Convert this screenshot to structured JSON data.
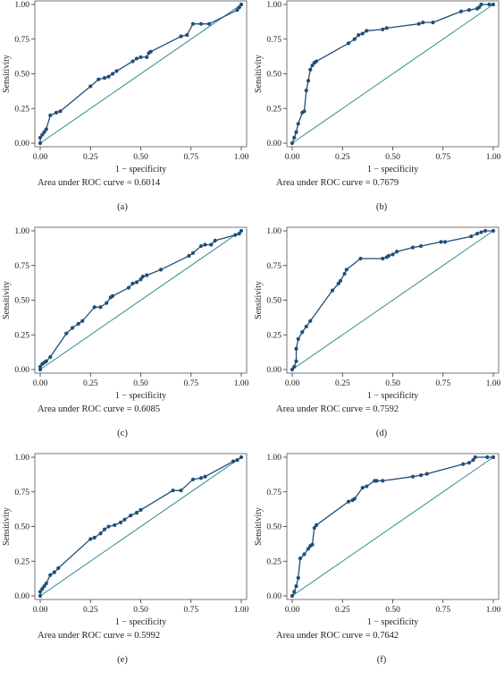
{
  "colors": {
    "roc": "#1f4e79",
    "ref": "#2e8b8b",
    "frame": "#555555",
    "tick": "#333333"
  },
  "x_ticks": [
    "0.00",
    "0.25",
    "0.50",
    "0.75",
    "1.00"
  ],
  "y_ticks": [
    "0.00",
    "0.25",
    "0.50",
    "0.75",
    "1.00"
  ],
  "chart_data": [
    {
      "type": "line",
      "panel_label": "(a)",
      "auc_label": "Area under ROC curve = 0.6014",
      "xlabel": "1 − specificity",
      "ylabel": "Sensitivity",
      "xlim": [
        0,
        1
      ],
      "ylim": [
        0,
        1
      ],
      "series": [
        {
          "x": [
            0,
            0,
            0.01,
            0.02,
            0.03,
            0.05,
            0.08,
            0.1,
            0.25,
            0.29,
            0.32,
            0.34,
            0.36,
            0.38,
            0.46,
            0.48,
            0.5,
            0.53,
            0.54,
            0.55,
            0.7,
            0.73,
            0.76,
            0.8,
            0.84,
            0.98,
            0.99,
            1.0
          ],
          "y": [
            0,
            0.04,
            0.06,
            0.08,
            0.1,
            0.2,
            0.22,
            0.23,
            0.41,
            0.46,
            0.47,
            0.48,
            0.5,
            0.52,
            0.59,
            0.61,
            0.62,
            0.62,
            0.65,
            0.66,
            0.77,
            0.78,
            0.86,
            0.86,
            0.86,
            0.96,
            0.98,
            1.0
          ]
        },
        {
          "x": [
            0,
            1
          ],
          "y": [
            0,
            1
          ]
        }
      ]
    },
    {
      "type": "line",
      "panel_label": "(b)",
      "auc_label": "Area under ROC curve = 0.7679",
      "xlabel": "1 − specificity",
      "ylabel": "Sensitivity",
      "xlim": [
        0,
        1
      ],
      "ylim": [
        0,
        1
      ],
      "series": [
        {
          "x": [
            0,
            0.01,
            0.02,
            0.03,
            0.05,
            0.06,
            0.07,
            0.08,
            0.09,
            0.1,
            0.11,
            0.12,
            0.28,
            0.31,
            0.33,
            0.35,
            0.37,
            0.45,
            0.47,
            0.63,
            0.65,
            0.7,
            0.84,
            0.88,
            0.92,
            0.93,
            0.94,
            0.98,
            1.0
          ],
          "y": [
            0,
            0.04,
            0.08,
            0.14,
            0.22,
            0.23,
            0.38,
            0.45,
            0.53,
            0.56,
            0.58,
            0.59,
            0.72,
            0.75,
            0.78,
            0.79,
            0.81,
            0.82,
            0.83,
            0.86,
            0.87,
            0.87,
            0.95,
            0.96,
            0.97,
            0.98,
            1.0,
            1.0,
            1.0
          ]
        },
        {
          "x": [
            0,
            1
          ],
          "y": [
            0,
            1
          ]
        }
      ]
    },
    {
      "type": "line",
      "panel_label": "(c)",
      "auc_label": "Area under ROC curve = 0.6085",
      "xlabel": "1 − specificity",
      "ylabel": "Sensitivity",
      "xlim": [
        0,
        1
      ],
      "ylim": [
        0,
        1
      ],
      "series": [
        {
          "x": [
            0,
            0,
            0.01,
            0.02,
            0.03,
            0.05,
            0.13,
            0.16,
            0.19,
            0.21,
            0.27,
            0.3,
            0.33,
            0.35,
            0.36,
            0.44,
            0.46,
            0.48,
            0.5,
            0.51,
            0.53,
            0.6,
            0.74,
            0.76,
            0.8,
            0.82,
            0.85,
            0.87,
            0.97,
            0.99,
            1.0
          ],
          "y": [
            0,
            0.02,
            0.04,
            0.05,
            0.06,
            0.09,
            0.26,
            0.3,
            0.33,
            0.35,
            0.45,
            0.45,
            0.48,
            0.52,
            0.53,
            0.59,
            0.62,
            0.63,
            0.65,
            0.67,
            0.68,
            0.72,
            0.82,
            0.84,
            0.89,
            0.9,
            0.9,
            0.93,
            0.97,
            0.98,
            1.0
          ]
        },
        {
          "x": [
            0,
            1
          ],
          "y": [
            0,
            1
          ]
        }
      ]
    },
    {
      "type": "line",
      "panel_label": "(d)",
      "auc_label": "Area under ROC curve = 0.7592",
      "xlabel": "1 − specificity",
      "ylabel": "Sensitivity",
      "xlim": [
        0,
        1
      ],
      "ylim": [
        0,
        1
      ],
      "series": [
        {
          "x": [
            0,
            0.01,
            0.02,
            0.02,
            0.03,
            0.05,
            0.07,
            0.09,
            0.2,
            0.23,
            0.24,
            0.26,
            0.27,
            0.34,
            0.45,
            0.47,
            0.48,
            0.5,
            0.52,
            0.6,
            0.64,
            0.74,
            0.76,
            0.89,
            0.92,
            0.94,
            0.96,
            1.0
          ],
          "y": [
            0,
            0.02,
            0.06,
            0.15,
            0.22,
            0.27,
            0.31,
            0.35,
            0.57,
            0.62,
            0.64,
            0.69,
            0.72,
            0.8,
            0.8,
            0.81,
            0.82,
            0.83,
            0.85,
            0.88,
            0.89,
            0.92,
            0.92,
            0.96,
            0.98,
            0.99,
            1.0,
            1.0
          ]
        },
        {
          "x": [
            0,
            1
          ],
          "y": [
            0,
            1
          ]
        }
      ]
    },
    {
      "type": "line",
      "panel_label": "(e)",
      "auc_label": "Area under ROC curve = 0.5992",
      "xlabel": "1 − specificity",
      "ylabel": "Sensitivity",
      "xlim": [
        0,
        1
      ],
      "ylim": [
        0,
        1
      ],
      "series": [
        {
          "x": [
            0,
            0,
            0.01,
            0.02,
            0.03,
            0.05,
            0.07,
            0.09,
            0.25,
            0.27,
            0.3,
            0.32,
            0.34,
            0.37,
            0.4,
            0.42,
            0.45,
            0.48,
            0.5,
            0.66,
            0.7,
            0.76,
            0.8,
            0.82,
            0.96,
            0.98,
            1.0
          ],
          "y": [
            0,
            0.03,
            0.05,
            0.07,
            0.09,
            0.15,
            0.17,
            0.2,
            0.41,
            0.42,
            0.45,
            0.48,
            0.5,
            0.51,
            0.53,
            0.55,
            0.58,
            0.6,
            0.62,
            0.76,
            0.76,
            0.84,
            0.85,
            0.86,
            0.97,
            0.98,
            1.0
          ]
        },
        {
          "x": [
            0,
            1
          ],
          "y": [
            0,
            1
          ]
        }
      ]
    },
    {
      "type": "line",
      "panel_label": "(f)",
      "auc_label": "Area under ROC curve = 0.7642",
      "xlabel": "1 − specificity",
      "ylabel": "Sensitivity",
      "xlim": [
        0,
        1
      ],
      "ylim": [
        0,
        1
      ],
      "series": [
        {
          "x": [
            0,
            0.01,
            0.02,
            0.03,
            0.04,
            0.06,
            0.08,
            0.09,
            0.1,
            0.11,
            0.12,
            0.28,
            0.3,
            0.31,
            0.35,
            0.37,
            0.41,
            0.42,
            0.45,
            0.6,
            0.64,
            0.67,
            0.85,
            0.88,
            0.9,
            0.91,
            0.97,
            1.0
          ],
          "y": [
            0,
            0.03,
            0.07,
            0.13,
            0.27,
            0.3,
            0.34,
            0.36,
            0.37,
            0.49,
            0.51,
            0.68,
            0.69,
            0.7,
            0.78,
            0.79,
            0.83,
            0.83,
            0.83,
            0.86,
            0.87,
            0.88,
            0.95,
            0.96,
            0.98,
            1.0,
            1.0,
            1.0
          ]
        },
        {
          "x": [
            0,
            1
          ],
          "y": [
            0,
            1
          ]
        }
      ]
    }
  ]
}
